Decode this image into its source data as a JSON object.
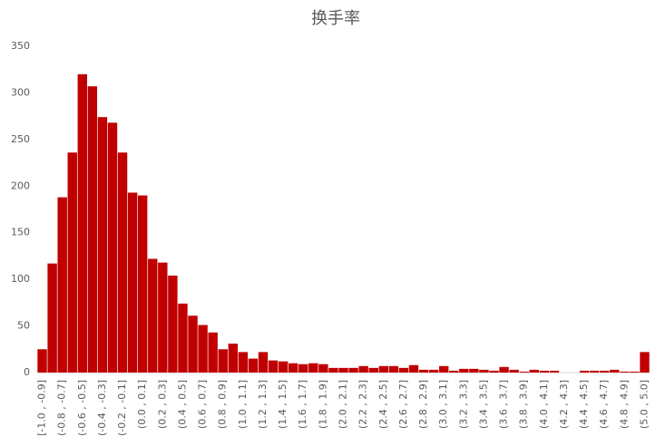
{
  "chart_data": {
    "type": "bar",
    "title": "换手率",
    "categories": [
      "[-1.0 , -0.9]",
      null,
      "(-0.8 , -0.7]",
      null,
      "(-0.6 , -0.5]",
      null,
      "(-0.4 , -0.3]",
      null,
      "(-0.2 , -0.1]",
      null,
      "(0.0 , 0.1]",
      null,
      "(0.2 , 0.3]",
      null,
      "(0.4 , 0.5]",
      null,
      "(0.6 , 0.7]",
      null,
      "(0.8 , 0.9]",
      null,
      "(1.0 , 1.1]",
      null,
      "(1.2 , 1.3]",
      null,
      "(1.4 , 1.5]",
      null,
      "(1.6 , 1.7]",
      null,
      "(1.8 , 1.9]",
      null,
      "(2.0 , 2.1]",
      null,
      "(2.2 , 2.3]",
      null,
      "(2.4 , 2.5]",
      null,
      "(2.6 , 2.7]",
      null,
      "(2.8 , 2.9]",
      null,
      "(3.0 , 3.1]",
      null,
      "(3.2 , 3.3]",
      null,
      "(3.4 , 3.5]",
      null,
      "(3.6 , 3.7]",
      null,
      "(3.8 , 3.9]",
      null,
      "(4.0 , 4.1]",
      null,
      "(4.2 , 4.3]",
      null,
      "(4.4 , 4.5]",
      null,
      "(4.6 , 4.7]",
      null,
      "(4.8 , 4.9]",
      null,
      "(5.0 , 5.0]"
    ],
    "values": [
      25,
      117,
      188,
      236,
      320,
      307,
      274,
      268,
      236,
      193,
      190,
      122,
      118,
      104,
      74,
      61,
      51,
      43,
      25,
      31,
      22,
      15,
      22,
      13,
      12,
      10,
      9,
      10,
      9,
      5,
      5,
      5,
      7,
      5,
      7,
      7,
      5,
      8,
      3,
      3,
      7,
      2,
      4,
      4,
      3,
      2,
      6,
      3,
      1,
      3,
      2,
      2,
      0,
      0,
      2,
      2,
      2,
      3,
      1,
      1,
      22
    ],
    "color": "#c00000",
    "ylim": [
      0,
      350
    ],
    "yticks": [
      0,
      50,
      100,
      150,
      200,
      250,
      300,
      350
    ],
    "grid": false
  }
}
